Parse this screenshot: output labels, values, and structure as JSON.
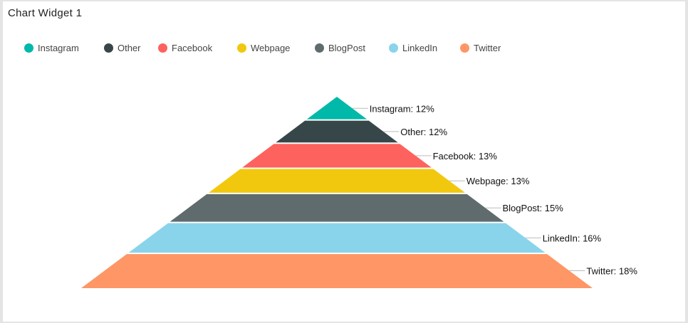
{
  "widget": {
    "title": "Chart Widget 1"
  },
  "chart_data": {
    "type": "pyramid",
    "categories": [
      "Instagram",
      "Other",
      "Facebook",
      "Webpage",
      "BlogPost",
      "LinkedIn",
      "Twitter"
    ],
    "values": [
      12,
      12,
      13,
      13,
      15,
      16,
      18
    ],
    "labels": [
      "Instagram: 12%",
      "Other: 12%",
      "Facebook: 13%",
      "Webpage: 13%",
      "BlogPost: 15%",
      "LinkedIn: 16%",
      "Twitter: 18%"
    ],
    "colors": [
      "#00b9a9",
      "#374649",
      "#fd625e",
      "#f2c80f",
      "#5f6b6d",
      "#8ad4eb",
      "#fe9666"
    ],
    "legend": {
      "position": "top-left",
      "marker": "circle"
    },
    "grid": false
  }
}
